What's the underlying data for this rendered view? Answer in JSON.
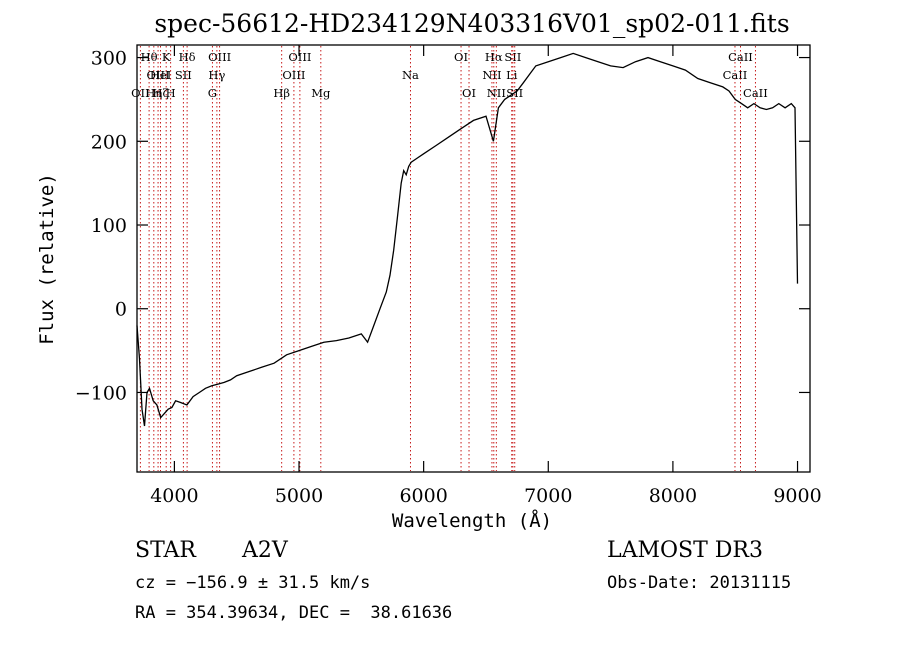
{
  "chart_data": {
    "type": "line",
    "title": "spec-56612-HD234129N403316V01_sp02-011.fits",
    "xlabel": "Wavelength (Å)",
    "ylabel": "Flux (relative)",
    "xlim": [
      3700,
      9100
    ],
    "ylim": [
      -195,
      315
    ],
    "xticks": [
      4000,
      5000,
      6000,
      7000,
      8000,
      9000
    ],
    "yticks": [
      -100,
      0,
      100,
      200,
      300
    ],
    "ytick_labels": [
      "−100",
      "0",
      "100",
      "200",
      "300"
    ],
    "series": [
      {
        "name": "spectrum",
        "x": [
          3700,
          3720,
          3740,
          3760,
          3780,
          3800,
          3830,
          3860,
          3890,
          3920,
          3950,
          3980,
          4010,
          4050,
          4100,
          4150,
          4200,
          4250,
          4300,
          4350,
          4400,
          4450,
          4500,
          4600,
          4700,
          4800,
          4900,
          5000,
          5100,
          5200,
          5300,
          5400,
          5500,
          5550,
          5600,
          5650,
          5700,
          5730,
          5760,
          5790,
          5820,
          5840,
          5860,
          5880,
          5900,
          5950,
          6000,
          6100,
          6200,
          6300,
          6400,
          6500,
          6560,
          6600,
          6650,
          6700,
          6750,
          6800,
          6850,
          6900,
          7000,
          7100,
          7200,
          7300,
          7400,
          7500,
          7600,
          7700,
          7800,
          7900,
          8000,
          8100,
          8200,
          8300,
          8400,
          8450,
          8500,
          8550,
          8600,
          8650,
          8700,
          8750,
          8800,
          8850,
          8900,
          8950,
          8980,
          9000
        ],
        "y": [
          -20,
          -60,
          -120,
          -140,
          -100,
          -95,
          -110,
          -115,
          -130,
          -125,
          -120,
          -118,
          -110,
          -112,
          -115,
          -105,
          -100,
          -95,
          -92,
          -90,
          -88,
          -85,
          -80,
          -75,
          -70,
          -65,
          -55,
          -50,
          -45,
          -40,
          -38,
          -35,
          -30,
          -40,
          -20,
          0,
          20,
          40,
          70,
          110,
          150,
          165,
          160,
          170,
          175,
          180,
          185,
          195,
          205,
          215,
          225,
          230,
          200,
          240,
          250,
          255,
          260,
          270,
          280,
          290,
          295,
          300,
          305,
          300,
          295,
          290,
          288,
          295,
          300,
          295,
          290,
          285,
          275,
          270,
          265,
          260,
          250,
          245,
          240,
          245,
          240,
          238,
          240,
          245,
          240,
          245,
          240,
          30
        ]
      }
    ],
    "line_marks": [
      {
        "x": 3727,
        "rows": [
          {
            "level": 2,
            "label": "OII"
          }
        ]
      },
      {
        "x": 3797,
        "rows": [
          {
            "level": 0,
            "label": "Hθ"
          }
        ]
      },
      {
        "x": 3835,
        "rows": [
          {
            "level": 2,
            "label": "Hη"
          }
        ]
      },
      {
        "x": 3869,
        "rows": [
          {
            "level": 1,
            "label": "OIII"
          }
        ]
      },
      {
        "x": 3889,
        "rows": [
          {
            "level": 1,
            "label": "HeI"
          },
          {
            "level": 2,
            "label": "Hζ"
          }
        ]
      },
      {
        "x": 3934,
        "rows": [
          {
            "level": 0,
            "label": "K"
          }
        ]
      },
      {
        "x": 3970,
        "rows": [
          {
            "level": 2,
            "label": "H"
          }
        ]
      },
      {
        "x": 4072,
        "rows": [
          {
            "level": 1,
            "label": "SII"
          }
        ]
      },
      {
        "x": 4102,
        "rows": [
          {
            "level": 0,
            "label": "Hδ"
          }
        ]
      },
      {
        "x": 4305,
        "rows": [
          {
            "level": 2,
            "label": "G"
          }
        ]
      },
      {
        "x": 4341,
        "rows": [
          {
            "level": 1,
            "label": "Hγ"
          }
        ]
      },
      {
        "x": 4363,
        "rows": [
          {
            "level": 0,
            "label": "OIII"
          }
        ]
      },
      {
        "x": 4861,
        "rows": [
          {
            "level": 2,
            "label": "Hβ"
          }
        ]
      },
      {
        "x": 4959,
        "rows": [
          {
            "level": 1,
            "label": "OIII"
          }
        ]
      },
      {
        "x": 5007,
        "rows": [
          {
            "level": 0,
            "label": "OIII"
          }
        ]
      },
      {
        "x": 5175,
        "rows": [
          {
            "level": 2,
            "label": "Mg"
          }
        ]
      },
      {
        "x": 5894,
        "rows": [
          {
            "level": 1,
            "label": "Na"
          }
        ]
      },
      {
        "x": 6300,
        "rows": [
          {
            "level": 0,
            "label": "OI"
          }
        ]
      },
      {
        "x": 6364,
        "rows": [
          {
            "level": 2,
            "label": "OI"
          }
        ]
      },
      {
        "x": 6548,
        "rows": [
          {
            "level": 1,
            "label": "NII"
          }
        ]
      },
      {
        "x": 6563,
        "rows": [
          {
            "level": 0,
            "label": "Hα"
          }
        ]
      },
      {
        "x": 6583,
        "rows": [
          {
            "level": 2,
            "label": "NII"
          }
        ]
      },
      {
        "x": 6707,
        "rows": [
          {
            "level": 1,
            "label": "Li"
          }
        ]
      },
      {
        "x": 6716,
        "rows": [
          {
            "level": 0,
            "label": "SII"
          }
        ]
      },
      {
        "x": 6731,
        "rows": [
          {
            "level": 2,
            "label": "SII"
          }
        ]
      },
      {
        "x": 8498,
        "rows": [
          {
            "level": 1,
            "label": "CaII"
          }
        ]
      },
      {
        "x": 8542,
        "rows": [
          {
            "level": 0,
            "label": "CaII"
          }
        ]
      },
      {
        "x": 8662,
        "rows": [
          {
            "level": 2,
            "label": "CaII"
          }
        ]
      }
    ],
    "colors": {
      "spectrum": "#000000",
      "line_marks": "#c00000"
    }
  },
  "info": {
    "object_class": "STAR",
    "subclass": "A2V",
    "survey": "LAMOST DR3",
    "cz": "cz = −156.9 ± 31.5 km/s",
    "obs_date": "Obs-Date: 20131115",
    "radec": "RA = 354.39634, DEC =  38.61636"
  }
}
